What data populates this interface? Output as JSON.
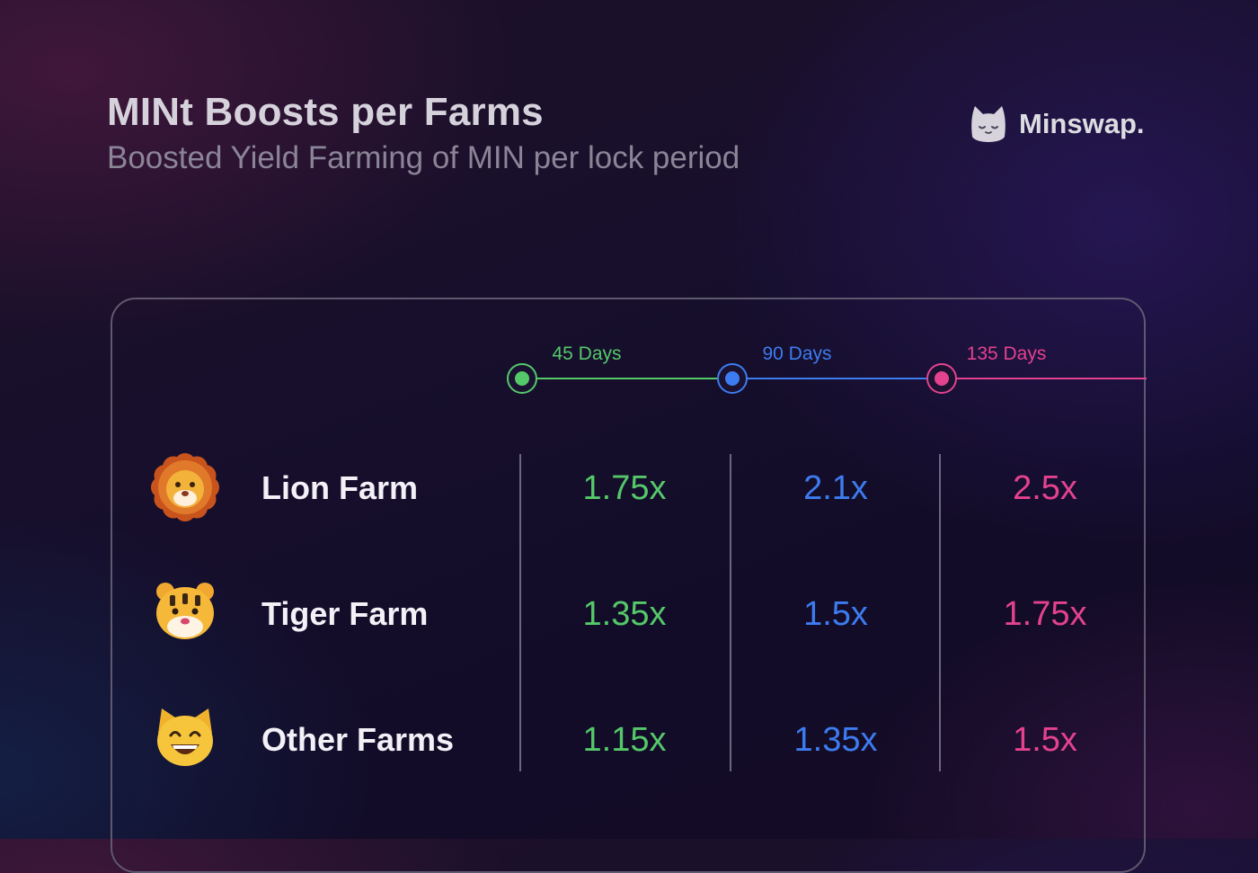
{
  "header": {
    "title": "MINt Boosts per Farms",
    "subtitle": "Boosted Yield Farming of MIN per lock period"
  },
  "brand": {
    "name": "Minswap.",
    "icon": "cat-logo-icon"
  },
  "colors": {
    "green": "#55c86a",
    "blue": "#3d7cf0",
    "pink": "#e4428f"
  },
  "chart_data": {
    "type": "table",
    "columns": [
      {
        "label": "45 Days",
        "color": "#55c86a"
      },
      {
        "label": "90 Days",
        "color": "#3d7cf0"
      },
      {
        "label": "135 Days",
        "color": "#e4428f"
      }
    ],
    "rows": [
      {
        "label": "Lion Farm",
        "icon": "lion-icon",
        "values": [
          "1.75x",
          "2.1x",
          "2.5x"
        ]
      },
      {
        "label": "Tiger Farm",
        "icon": "tiger-icon",
        "values": [
          "1.35x",
          "1.5x",
          "1.75x"
        ]
      },
      {
        "label": "Other Farms",
        "icon": "grinning-cat-icon",
        "values": [
          "1.15x",
          "1.35x",
          "1.5x"
        ]
      }
    ]
  }
}
